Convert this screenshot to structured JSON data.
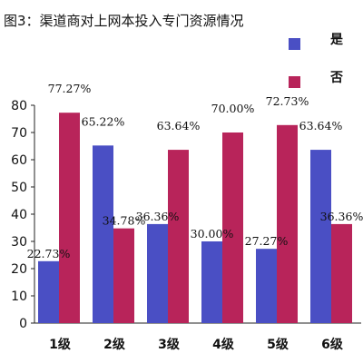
{
  "chart_data": {
    "type": "bar",
    "title": "图3：渠道商对上网本投入专门资源情况",
    "categories": [
      "1级",
      "2级",
      "3级",
      "4级",
      "5级",
      "6级"
    ],
    "series": [
      {
        "name": "是",
        "color": "#4a4fc4",
        "values": [
          22.73,
          65.22,
          36.36,
          30.0,
          27.27,
          63.64
        ],
        "labels": [
          "22.73%",
          "65.22%",
          "36.36%",
          "30.00%",
          "27.27%",
          "63.64%"
        ]
      },
      {
        "name": "否",
        "color": "#b8245a",
        "values": [
          77.27,
          34.78,
          63.64,
          70.0,
          72.73,
          36.36
        ],
        "labels": [
          "77.27%",
          "34.78%",
          "63.64%",
          "70.00%",
          "72.73%",
          "36.36%"
        ]
      }
    ],
    "ylim": [
      0,
      80
    ],
    "yticks": [
      "0",
      "10",
      "20",
      "30",
      "40",
      "50",
      "60",
      "70",
      "80"
    ],
    "xlabel": "",
    "ylabel": "",
    "grid": false,
    "legend_position": "top-right"
  }
}
